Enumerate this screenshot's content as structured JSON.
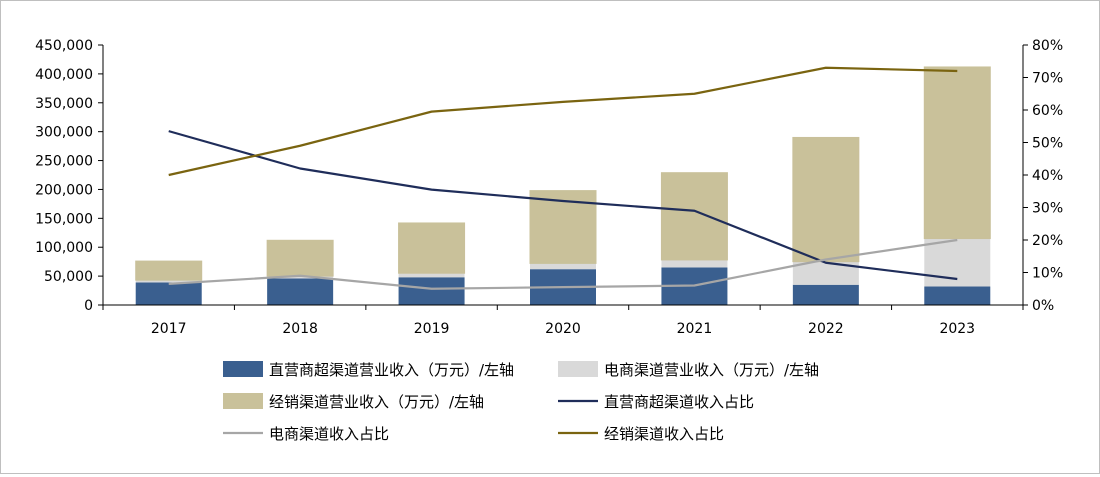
{
  "chart_data": {
    "type": "bar",
    "stacked": true,
    "categories": [
      "2017",
      "2018",
      "2019",
      "2020",
      "2021",
      "2022",
      "2023"
    ],
    "y_left": {
      "ylim": [
        0,
        450000
      ],
      "ticks": [
        "0",
        "50,000",
        "100,000",
        "150,000",
        "200,000",
        "250,000",
        "300,000",
        "350,000",
        "400,000",
        "450,000"
      ]
    },
    "y_right": {
      "ylim": [
        0,
        80
      ],
      "ticks": [
        "0%",
        "10%",
        "20%",
        "30%",
        "40%",
        "50%",
        "60%",
        "70%",
        "80%"
      ]
    },
    "bar_series": [
      {
        "name": "直营商超渠道营业收入（万元）/左轴",
        "color": "#3a5f8f",
        "values": [
          39000,
          46000,
          48000,
          62000,
          65000,
          35000,
          32000
        ]
      },
      {
        "name": "电商渠道营业收入（万元）/左轴",
        "color": "#d9d9d9",
        "values": [
          4000,
          4000,
          7000,
          10000,
          13000,
          40000,
          83000
        ]
      },
      {
        "name": "经销渠道营业收入（万元）/左轴",
        "color": "#c9c19a",
        "values": [
          33000,
          62000,
          87000,
          126000,
          151000,
          215000,
          297000
        ]
      }
    ],
    "line_series": [
      {
        "name": "直营商超渠道收入占比",
        "color": "#1f2d5a",
        "values": [
          53.5,
          42,
          35.5,
          32,
          29,
          13,
          8
        ]
      },
      {
        "name": "电商渠道收入占比",
        "color": "#a6a6a6",
        "values": [
          6.5,
          9,
          5,
          5.5,
          6,
          14,
          20
        ]
      },
      {
        "name": "经销渠道收入占比",
        "color": "#7a6410",
        "values": [
          40,
          49,
          59.5,
          62.5,
          65,
          73,
          72
        ]
      }
    ],
    "legend_position": "bottom",
    "grid": false
  }
}
